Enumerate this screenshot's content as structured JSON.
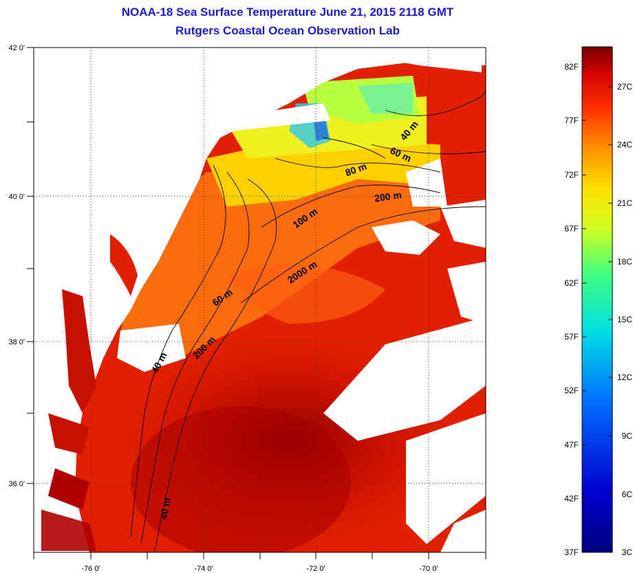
{
  "header": {
    "title": "NOAA-18 Sea Surface Temperature June 21, 2015 2118 GMT",
    "subtitle": "Rutgers Coastal Ocean Observation Lab"
  },
  "map": {
    "lon_labels": [
      "-76 0'",
      "-74 0'",
      "-72 0'",
      "-70 0'"
    ],
    "lat_labels": [
      "42 0'",
      "40 0'",
      "38 0'",
      "36 0'"
    ],
    "isobath_labels": [
      "40 m",
      "60 m",
      "80 m",
      "200 m",
      "100 m",
      "2000 m",
      "60 m",
      "200 m",
      "40 m",
      "40 m"
    ]
  },
  "colorbar": {
    "fahrenheit_labels": [
      "82F",
      "77F",
      "72F",
      "67F",
      "62F",
      "57F",
      "52F",
      "47F",
      "42F",
      "37F"
    ],
    "celsius_labels": [
      "27C",
      "24C",
      "21C",
      "18C",
      "15C",
      "12C",
      "9C",
      "6C",
      "3C"
    ]
  },
  "colors": {
    "title": "#1a1acc",
    "land": "#ffffff",
    "warmest": "#7a0000",
    "cold": "#0a2aa0",
    "isobath": "#000000"
  }
}
